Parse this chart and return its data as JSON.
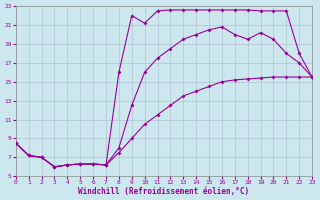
{
  "bg_color": "#cce8ee",
  "line_color": "#990099",
  "grid_color": "#aabbcc",
  "xlabel": "Windchill (Refroidissement éolien,°C)",
  "xlim": [
    0,
    23
  ],
  "ylim": [
    5,
    23
  ],
  "xticks": [
    0,
    1,
    2,
    3,
    4,
    5,
    6,
    7,
    8,
    9,
    10,
    11,
    12,
    13,
    14,
    15,
    16,
    17,
    18,
    19,
    20,
    21,
    22,
    23
  ],
  "yticks": [
    5,
    7,
    9,
    11,
    13,
    15,
    17,
    19,
    21,
    23
  ],
  "curve1_x": [
    0,
    1,
    2,
    3,
    4,
    5,
    6,
    7,
    8,
    9,
    10,
    11,
    12,
    13,
    14,
    15,
    16,
    17,
    18,
    19,
    20,
    21,
    22,
    23
  ],
  "curve1_y": [
    8.5,
    7.2,
    7.0,
    6.0,
    6.2,
    6.3,
    6.3,
    6.2,
    16.0,
    22.0,
    21.2,
    22.5,
    22.6,
    22.6,
    22.6,
    22.6,
    22.6,
    22.6,
    22.6,
    22.5,
    22.5,
    22.5,
    18.0,
    15.5
  ],
  "curve2_x": [
    0,
    1,
    2,
    3,
    4,
    5,
    6,
    7,
    8,
    9,
    10,
    11,
    12,
    13,
    14,
    15,
    16,
    17,
    18,
    19,
    20,
    21,
    22,
    23
  ],
  "curve2_y": [
    8.5,
    7.2,
    7.0,
    6.0,
    6.2,
    6.3,
    6.3,
    6.2,
    8.0,
    12.5,
    16.0,
    17.5,
    18.5,
    19.5,
    20.0,
    20.5,
    20.8,
    20.0,
    19.5,
    20.2,
    19.5,
    18.0,
    17.0,
    15.5
  ],
  "curve3_x": [
    0,
    1,
    2,
    3,
    4,
    5,
    6,
    7,
    8,
    9,
    10,
    11,
    12,
    13,
    14,
    15,
    16,
    17,
    18,
    19,
    20,
    21,
    22,
    23
  ],
  "curve3_y": [
    8.5,
    7.2,
    7.0,
    6.0,
    6.2,
    6.3,
    6.3,
    6.2,
    7.5,
    9.0,
    10.5,
    11.5,
    12.5,
    13.5,
    14.0,
    14.5,
    15.0,
    15.2,
    15.3,
    15.4,
    15.5,
    15.5,
    15.5,
    15.5
  ]
}
